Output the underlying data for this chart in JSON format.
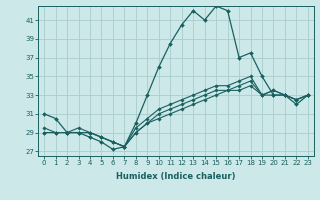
{
  "title": "",
  "xlabel": "Humidex (Indice chaleur)",
  "ylabel": "",
  "bg_color": "#cce8e8",
  "grid_color": "#aacccc",
  "line_color": "#1a6060",
  "xlim": [
    -0.5,
    23.5
  ],
  "ylim": [
    26.5,
    42.5
  ],
  "yticks": [
    27,
    29,
    31,
    33,
    35,
    37,
    39,
    41
  ],
  "xticks": [
    0,
    1,
    2,
    3,
    4,
    5,
    6,
    7,
    8,
    9,
    10,
    11,
    12,
    13,
    14,
    15,
    16,
    17,
    18,
    19,
    20,
    21,
    22,
    23
  ],
  "series": [
    [
      31.0,
      30.5,
      29.0,
      29.0,
      28.5,
      28.0,
      27.2,
      27.5,
      30.0,
      33.0,
      36.0,
      38.5,
      40.5,
      42.0,
      41.0,
      42.5,
      42.0,
      37.0,
      37.5,
      35.0,
      33.0,
      33.0,
      32.0,
      33.0
    ],
    [
      29.5,
      29.0,
      29.0,
      29.5,
      29.0,
      28.5,
      28.0,
      27.5,
      29.5,
      30.5,
      31.5,
      32.0,
      32.5,
      33.0,
      33.5,
      34.0,
      34.0,
      34.5,
      35.0,
      33.0,
      33.5,
      33.0,
      32.5,
      33.0
    ],
    [
      29.0,
      29.0,
      29.0,
      29.0,
      29.0,
      28.5,
      28.0,
      27.5,
      29.0,
      30.0,
      31.0,
      31.5,
      32.0,
      32.5,
      33.0,
      33.5,
      33.5,
      34.0,
      34.5,
      33.0,
      33.5,
      33.0,
      32.5,
      33.0
    ],
    [
      29.0,
      29.0,
      29.0,
      29.0,
      29.0,
      28.5,
      28.0,
      27.5,
      29.0,
      30.0,
      30.5,
      31.0,
      31.5,
      32.0,
      32.5,
      33.0,
      33.5,
      33.5,
      34.0,
      33.0,
      33.0,
      33.0,
      32.5,
      33.0
    ]
  ]
}
